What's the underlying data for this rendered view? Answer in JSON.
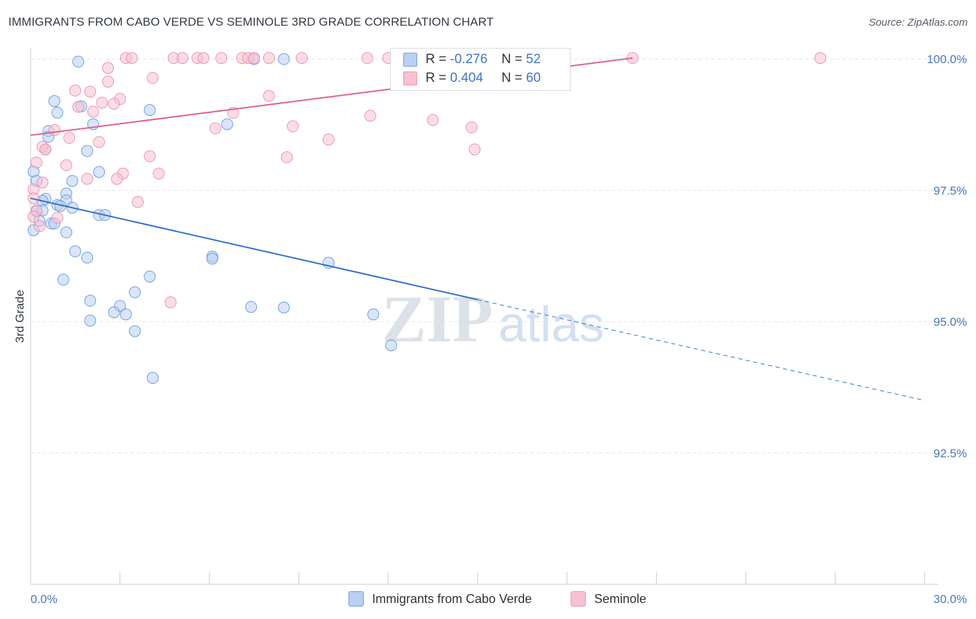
{
  "title": "IMMIGRANTS FROM CABO VERDE VS SEMINOLE 3RD GRADE CORRELATION CHART",
  "source": "Source: ZipAtlas.com",
  "watermark": {
    "zip": "ZIP",
    "atlas": "atlas"
  },
  "legend": {
    "r_label": "R =",
    "n_label": "N =",
    "rows": [
      {
        "r": "-0.276",
        "n": "52",
        "fill": "#b9d0f2",
        "stroke": "#6e9ee0"
      },
      {
        "r": "0.404",
        "n": "60",
        "fill": "#f7c1d2",
        "stroke": "#ec93b0"
      }
    ]
  },
  "colors": {
    "blue": "#3f74c8",
    "blue_line": "#2f6fd0",
    "pink_line": "#e0628c",
    "grid": "#e3e6ea",
    "axis": "#c7ccd2",
    "tick_label": "#4a76c0"
  },
  "chart_data": {
    "type": "scatter",
    "title": "IMMIGRANTS FROM CABO VERDE VS SEMINOLE 3RD GRADE CORRELATION CHART",
    "xlabel": "",
    "ylabel": "3rd Grade",
    "xlim": [
      0,
      30
    ],
    "ylim": [
      90.0,
      100.2
    ],
    "x_tick_labels": [
      "0.0%",
      "30.0%"
    ],
    "y_ticks": [
      92.5,
      95.0,
      97.5,
      100.0
    ],
    "y_tick_labels": [
      "92.5%",
      "95.0%",
      "97.5%",
      "100.0%"
    ],
    "grid": true,
    "legend_position": "bottom",
    "series": [
      {
        "name": "Immigrants from Cabo Verde",
        "color": "#6e9ee0",
        "fill": "#b9d0f2",
        "r": -0.276,
        "n": 52,
        "trend": {
          "x0": 0,
          "y0": 97.35,
          "x1": 15.0,
          "y1": 95.42,
          "dash_to_x": 30,
          "dash_to_y": 93.5
        },
        "points": [
          [
            1.6,
            99.95
          ],
          [
            7.5,
            100.0
          ],
          [
            8.5,
            100.0
          ],
          [
            0.8,
            99.2
          ],
          [
            0.9,
            98.98
          ],
          [
            1.7,
            99.1
          ],
          [
            4.0,
            99.03
          ],
          [
            2.1,
            98.76
          ],
          [
            6.6,
            98.76
          ],
          [
            0.6,
            98.63
          ],
          [
            0.6,
            98.52
          ],
          [
            0.5,
            98.28
          ],
          [
            1.9,
            98.25
          ],
          [
            0.1,
            97.86
          ],
          [
            2.3,
            97.85
          ],
          [
            0.2,
            97.68
          ],
          [
            1.4,
            97.68
          ],
          [
            1.2,
            97.44
          ],
          [
            0.5,
            97.34
          ],
          [
            1.2,
            97.31
          ],
          [
            0.4,
            97.3
          ],
          [
            0.9,
            97.22
          ],
          [
            1.0,
            97.2
          ],
          [
            1.4,
            97.17
          ],
          [
            0.2,
            97.1
          ],
          [
            0.4,
            97.12
          ],
          [
            2.3,
            97.03
          ],
          [
            2.5,
            97.03
          ],
          [
            0.3,
            96.92
          ],
          [
            0.7,
            96.87
          ],
          [
            0.8,
            96.87
          ],
          [
            1.2,
            96.7
          ],
          [
            0.1,
            96.74
          ],
          [
            1.5,
            96.34
          ],
          [
            1.9,
            96.22
          ],
          [
            6.1,
            96.24
          ],
          [
            6.1,
            96.2
          ],
          [
            10.0,
            96.12
          ],
          [
            4.0,
            95.86
          ],
          [
            1.1,
            95.8
          ],
          [
            3.5,
            95.56
          ],
          [
            2.0,
            95.4
          ],
          [
            3.0,
            95.3
          ],
          [
            7.4,
            95.28
          ],
          [
            8.5,
            95.27
          ],
          [
            2.8,
            95.18
          ],
          [
            3.2,
            95.14
          ],
          [
            11.5,
            95.14
          ],
          [
            2.0,
            95.02
          ],
          [
            3.5,
            94.82
          ],
          [
            12.1,
            94.55
          ],
          [
            4.1,
            93.93
          ]
        ]
      },
      {
        "name": "Seminole",
        "color": "#ec93b0",
        "fill": "#f7c1d2",
        "r": 0.404,
        "n": 60,
        "trend": {
          "x0": 0,
          "y0": 98.55,
          "x1": 20.2,
          "y1": 100.02
        },
        "points": [
          [
            3.2,
            100.02
          ],
          [
            3.4,
            100.02
          ],
          [
            4.8,
            100.02
          ],
          [
            5.1,
            100.02
          ],
          [
            5.6,
            100.02
          ],
          [
            5.8,
            100.02
          ],
          [
            6.4,
            100.02
          ],
          [
            7.1,
            100.02
          ],
          [
            7.3,
            100.02
          ],
          [
            7.5,
            100.02
          ],
          [
            8.0,
            100.02
          ],
          [
            9.1,
            100.02
          ],
          [
            11.3,
            100.02
          ],
          [
            12.0,
            100.02
          ],
          [
            13.6,
            100.02
          ],
          [
            14.1,
            100.02
          ],
          [
            15.8,
            100.02
          ],
          [
            20.2,
            100.02
          ],
          [
            26.5,
            100.02
          ],
          [
            2.6,
            99.83
          ],
          [
            4.1,
            99.64
          ],
          [
            2.6,
            99.57
          ],
          [
            2.0,
            99.38
          ],
          [
            1.5,
            99.4
          ],
          [
            3.0,
            99.24
          ],
          [
            2.4,
            99.17
          ],
          [
            8.0,
            99.3
          ],
          [
            2.8,
            99.15
          ],
          [
            1.6,
            99.09
          ],
          [
            2.1,
            99.0
          ],
          [
            6.8,
            98.98
          ],
          [
            11.4,
            98.92
          ],
          [
            13.5,
            98.84
          ],
          [
            6.2,
            98.68
          ],
          [
            8.8,
            98.72
          ],
          [
            14.8,
            98.7
          ],
          [
            1.3,
            98.5
          ],
          [
            0.8,
            98.65
          ],
          [
            2.3,
            98.42
          ],
          [
            10.0,
            98.47
          ],
          [
            14.9,
            98.28
          ],
          [
            0.4,
            98.33
          ],
          [
            0.5,
            98.28
          ],
          [
            4.0,
            98.15
          ],
          [
            8.6,
            98.13
          ],
          [
            0.2,
            98.03
          ],
          [
            1.2,
            97.98
          ],
          [
            3.1,
            97.82
          ],
          [
            4.3,
            97.82
          ],
          [
            2.9,
            97.72
          ],
          [
            1.9,
            97.72
          ],
          [
            0.4,
            97.65
          ],
          [
            0.1,
            97.52
          ],
          [
            0.1,
            97.35
          ],
          [
            3.6,
            97.28
          ],
          [
            0.2,
            97.12
          ],
          [
            0.9,
            96.98
          ],
          [
            0.3,
            96.82
          ],
          [
            4.7,
            95.37
          ],
          [
            0.1,
            97.0
          ]
        ]
      }
    ]
  }
}
